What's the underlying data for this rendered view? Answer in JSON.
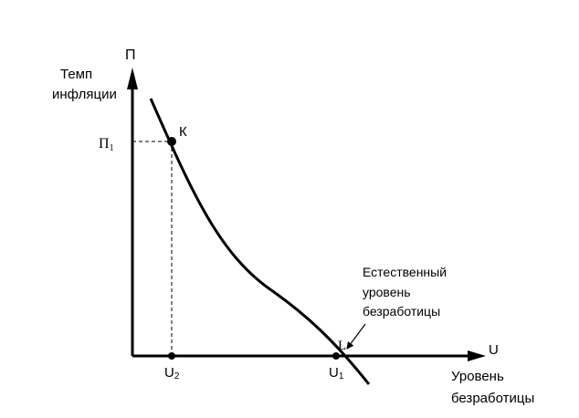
{
  "diagram": {
    "title": "",
    "y_axis": {
      "symbol": "П",
      "label_line1": "Темп",
      "label_line2": "инфляции"
    },
    "x_axis": {
      "symbol": "U",
      "label_line1": "Уровень",
      "label_line2": "безработицы"
    },
    "points": [
      {
        "id": "K",
        "label": "К"
      },
      {
        "id": "L",
        "label": "L"
      }
    ],
    "ticks": {
      "pi1_main": "П",
      "pi1_sub": "1",
      "u2_main": "U",
      "u2_sub": "2",
      "u1_main": "U",
      "u1_sub": "1"
    },
    "annotation": {
      "line1": "Естественный",
      "line2": "уровень",
      "line3": "безработицы"
    },
    "colors": {
      "line": "#000000",
      "background": "#ffffff"
    }
  }
}
